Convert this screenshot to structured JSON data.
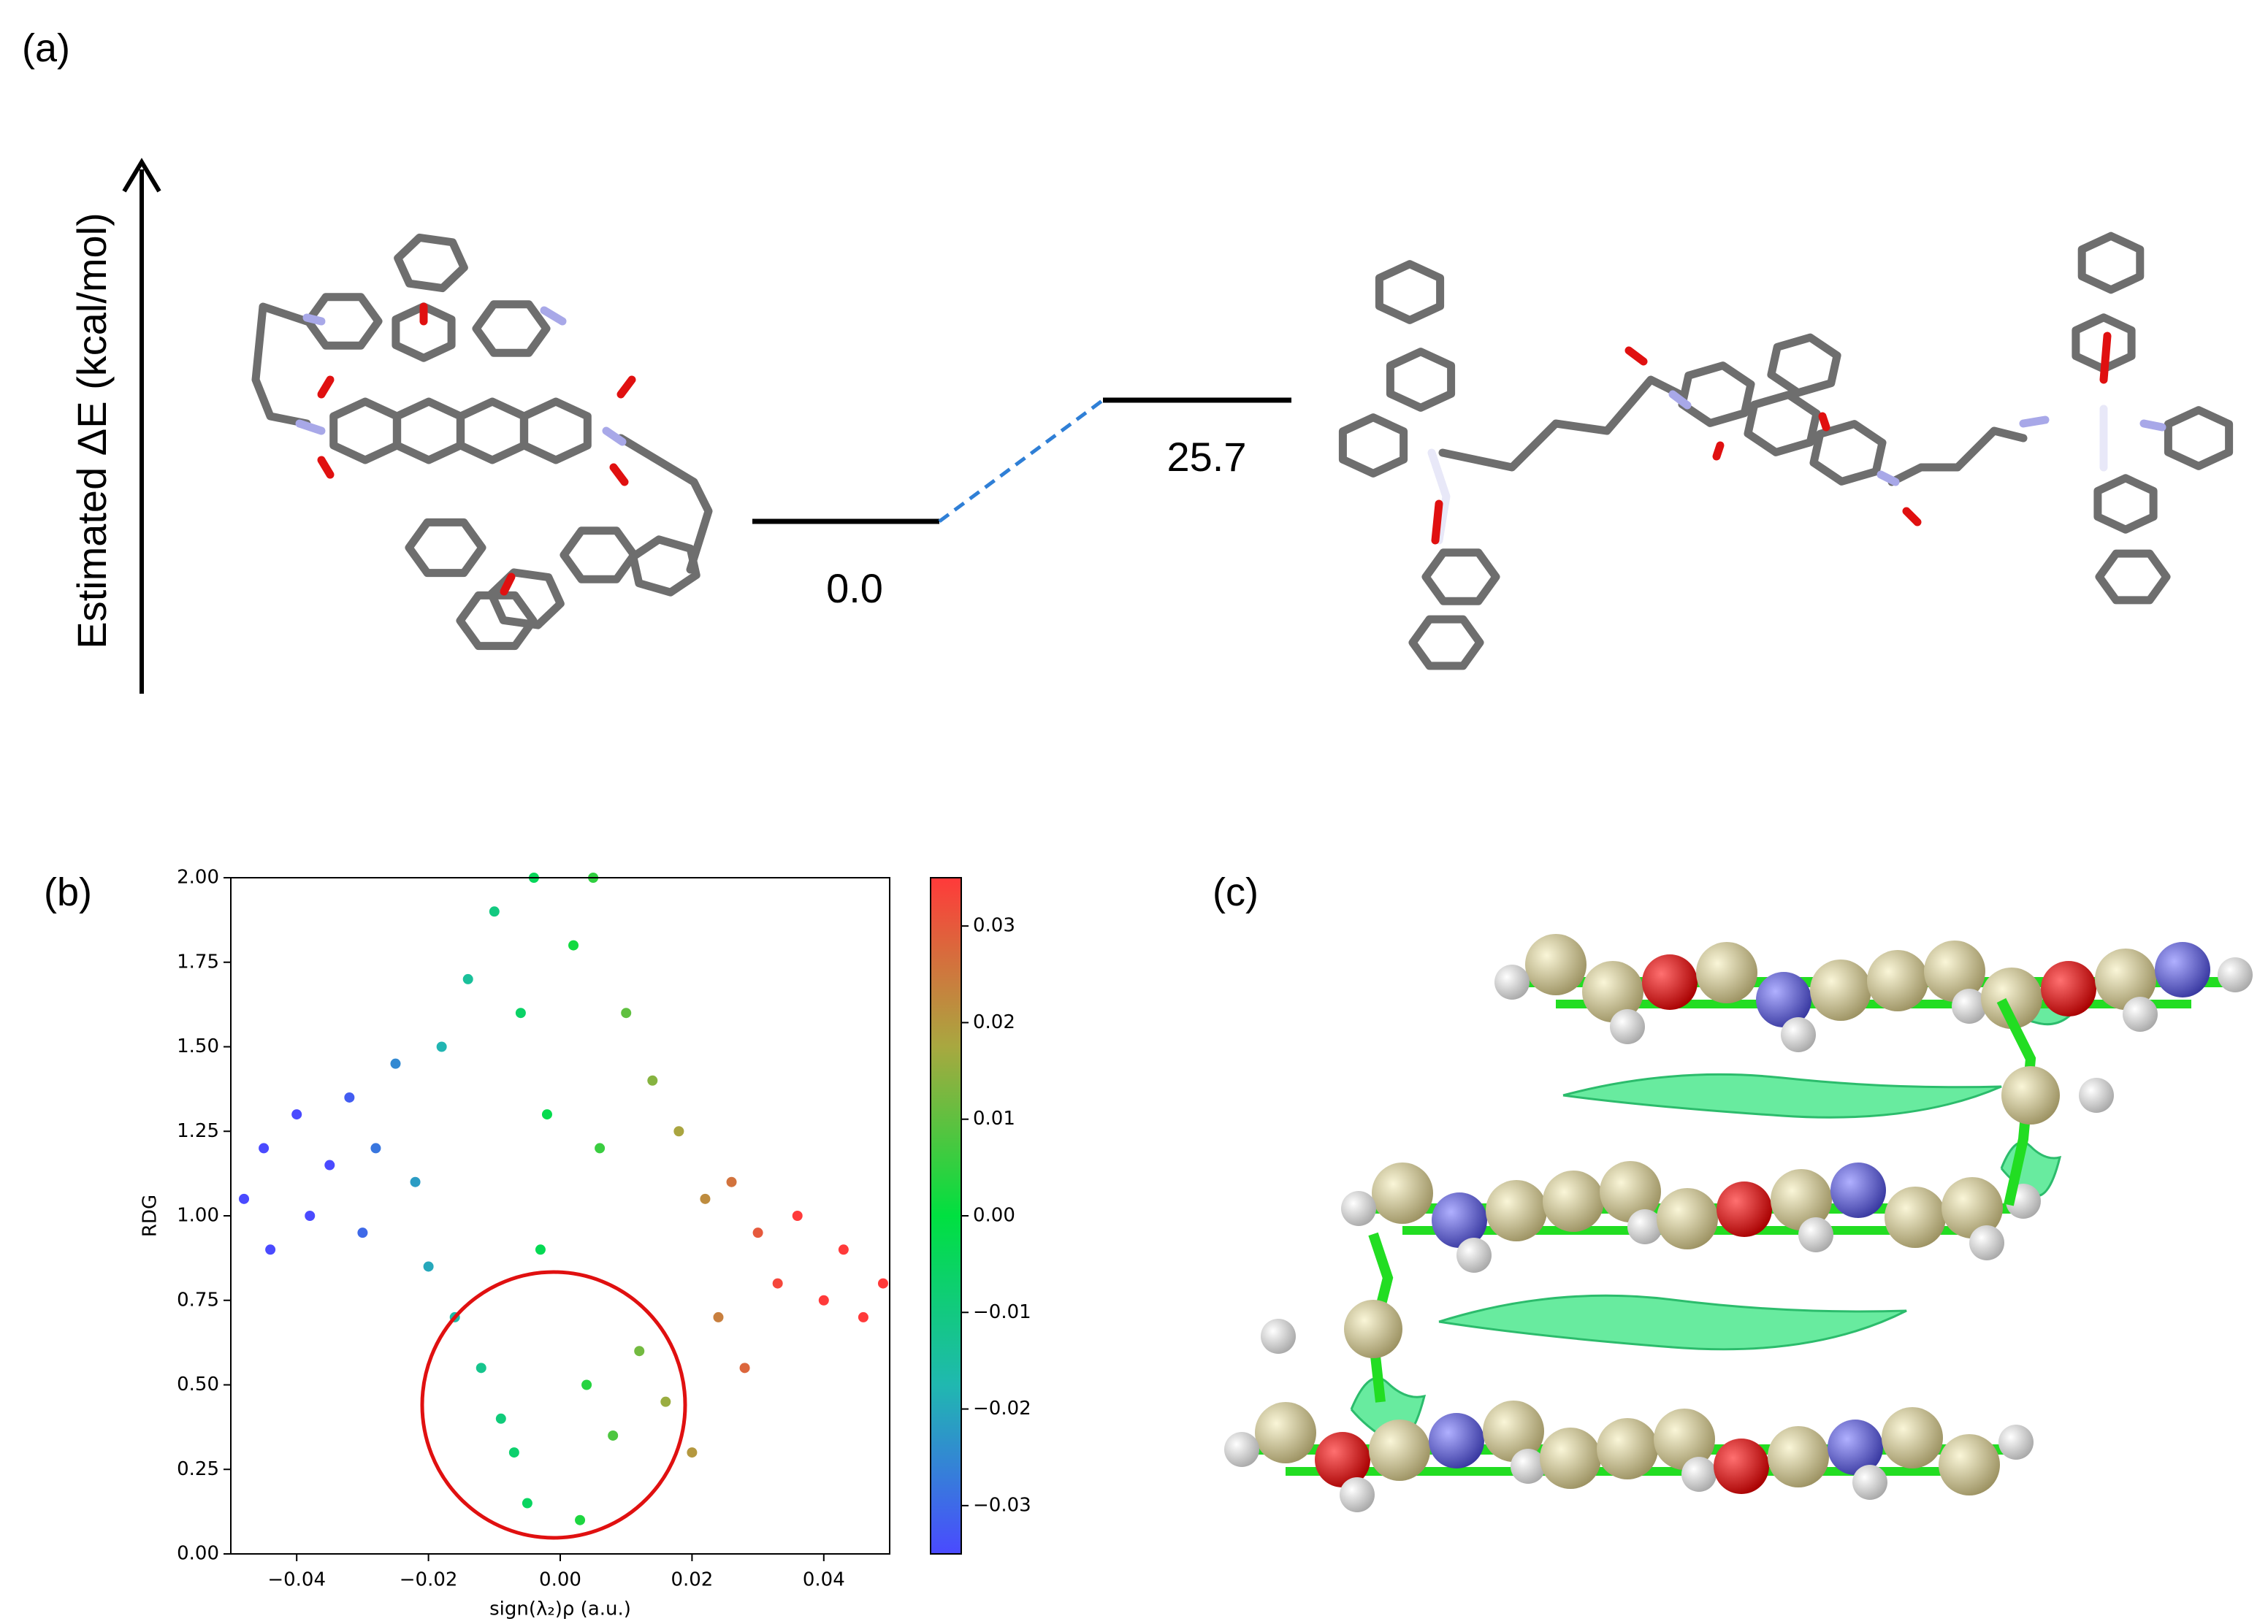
{
  "panel_labels": [
    "(a)",
    "(b)",
    "(c)"
  ],
  "energy_diagram": {
    "axis_label": "Estimated ΔE (kcal/mol)",
    "values": [
      0,
      25.7
    ],
    "value_labels": [
      "0.0",
      "25.7"
    ],
    "connector_color": "#2f7fd6"
  },
  "chart_data": {
    "type": "scatter",
    "x_label": "sign(λ₂)ρ (a.u.)",
    "y_label": "RDG",
    "xlim": [
      -0.05,
      0.05
    ],
    "ylim": [
      0,
      2
    ],
    "xticks": [
      {
        "value": -0.04,
        "label": "−0.04"
      },
      {
        "value": -0.02,
        "label": "−0.02"
      },
      {
        "value": 0,
        "label": "0.00"
      },
      0.02,
      0.04
    ],
    "yticks": [
      {
        "value": 0,
        "label": "0.00"
      },
      0.25,
      {
        "value": 0.5,
        "label": "0.50"
      },
      0.75,
      {
        "value": 1,
        "label": "1.00"
      },
      1.25,
      {
        "value": 1.5,
        "label": "1.50"
      },
      1.75,
      {
        "value": 2,
        "label": "2.00"
      }
    ],
    "x": [
      -0.048,
      -0.045,
      -0.044,
      -0.04,
      -0.038,
      -0.035,
      -0.032,
      -0.03,
      -0.028,
      -0.025,
      -0.022,
      -0.02,
      -0.018,
      -0.016,
      -0.014,
      -0.012,
      -0.01,
      -0.009,
      -0.007,
      -0.006,
      -0.005,
      -0.004,
      -0.003,
      -0.002,
      0.002,
      0.003,
      0.004,
      0.005,
      0.006,
      0.008,
      0.01,
      0.012,
      0.014,
      0.016,
      0.018,
      0.02,
      0.022,
      0.024,
      0.026,
      0.028,
      0.03,
      0.033,
      0.036,
      0.04,
      0.043,
      0.046,
      0.049
    ],
    "y": [
      1.05,
      1.2,
      0.9,
      1.3,
      1.0,
      1.15,
      1.35,
      0.95,
      1.2,
      1.45,
      1.1,
      0.85,
      1.5,
      0.7,
      1.7,
      0.55,
      1.9,
      0.4,
      0.3,
      1.6,
      0.15,
      2.0,
      0.9,
      1.3,
      1.8,
      0.1,
      0.5,
      2.0,
      1.2,
      0.35,
      1.6,
      0.6,
      1.4,
      0.45,
      1.25,
      0.3,
      1.05,
      0.7,
      1.1,
      0.55,
      0.95,
      0.8,
      1.0,
      0.75,
      0.9,
      0.7,
      0.8
    ],
    "colorbar": {
      "clim": [
        -0.035,
        0.035
      ],
      "ticks": [
        {
          "value": -0.03,
          "label": "−0.03"
        },
        {
          "value": -0.02,
          "label": "−0.02"
        },
        {
          "value": -0.01,
          "label": "−0.01"
        },
        {
          "value": 0,
          "label": "0.00"
        },
        0.01,
        0.02,
        0.03
      ],
      "colormap": [
        "#4a4aff",
        "#20b8b0",
        "#00e040",
        "#a8a840",
        "#ff3a3a"
      ]
    }
  }
}
